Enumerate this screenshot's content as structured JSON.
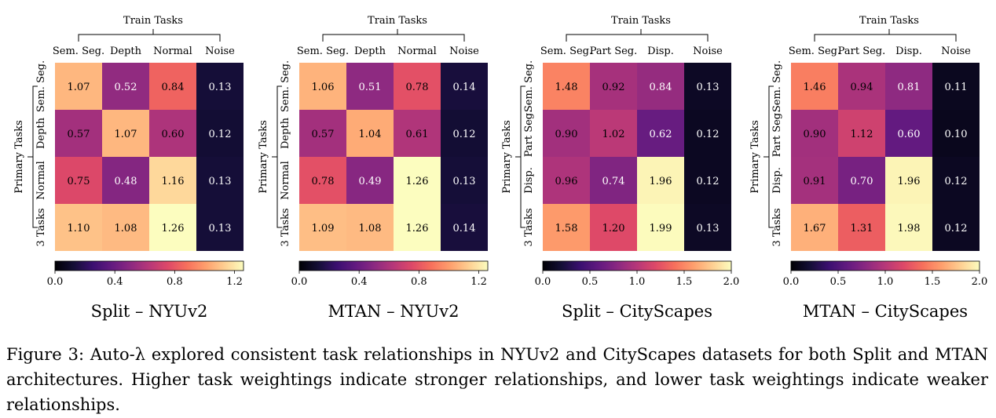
{
  "chart_data": [
    {
      "type": "heatmap",
      "title": "Split – NYUv2",
      "xgroup_label": "Train Tasks",
      "ygroup_label": "Primary Tasks",
      "x_categories": [
        "Sem. Seg.",
        "Depth",
        "Normal",
        "Noise"
      ],
      "y_categories": [
        "Sem. Seg.",
        "Depth",
        "Normal",
        "3 Tasks"
      ],
      "values": [
        [
          1.07,
          0.52,
          0.84,
          0.13
        ],
        [
          0.57,
          1.07,
          0.6,
          0.12
        ],
        [
          0.75,
          0.48,
          1.16,
          0.13
        ],
        [
          1.1,
          1.08,
          1.26,
          0.13
        ]
      ],
      "value_labels": [
        [
          "1.07",
          "0.52",
          "0.84",
          "0.13"
        ],
        [
          "0.57",
          "1.07",
          "0.60",
          "0.12"
        ],
        [
          "0.75",
          "0.48",
          "1.16",
          "0.13"
        ],
        [
          "1.10",
          "1.08",
          "1.26",
          "0.13"
        ]
      ],
      "colormap": "magma",
      "vlim": [
        0,
        1.26
      ],
      "colorbar_ticks": [
        0,
        0.4,
        0.8,
        1.2
      ],
      "colorbar_tick_labels": [
        "0.0",
        "0.4",
        "0.8",
        "1.2"
      ]
    },
    {
      "type": "heatmap",
      "title": "MTAN – NYUv2",
      "xgroup_label": "Train Tasks",
      "ygroup_label": "Primary Tasks",
      "x_categories": [
        "Sem. Seg.",
        "Depth",
        "Normal",
        "Noise"
      ],
      "y_categories": [
        "Sem. Seg.",
        "Depth",
        "Normal",
        "3 Tasks"
      ],
      "values": [
        [
          1.06,
          0.51,
          0.78,
          0.14
        ],
        [
          0.57,
          1.04,
          0.61,
          0.12
        ],
        [
          0.78,
          0.49,
          1.26,
          0.13
        ],
        [
          1.09,
          1.08,
          1.26,
          0.14
        ]
      ],
      "value_labels": [
        [
          "1.06",
          "0.51",
          "0.78",
          "0.14"
        ],
        [
          "0.57",
          "1.04",
          "0.61",
          "0.12"
        ],
        [
          "0.78",
          "0.49",
          "1.26",
          "0.13"
        ],
        [
          "1.09",
          "1.08",
          "1.26",
          "0.14"
        ]
      ],
      "colormap": "magma",
      "vlim": [
        0,
        1.26
      ],
      "colorbar_ticks": [
        0,
        0.4,
        0.8,
        1.2
      ],
      "colorbar_tick_labels": [
        "0.0",
        "0.4",
        "0.8",
        "1.2"
      ]
    },
    {
      "type": "heatmap",
      "title": "Split – CityScapes",
      "xgroup_label": "Train Tasks",
      "ygroup_label": "Primary Tasks",
      "x_categories": [
        "Sem. Seg.",
        "Part Seg.",
        "Disp.",
        "Noise"
      ],
      "y_categories": [
        "Sem. Seg.",
        "Part Seg.",
        "Disp.",
        "3 Tasks"
      ],
      "values": [
        [
          1.48,
          0.92,
          0.84,
          0.13
        ],
        [
          0.9,
          1.02,
          0.62,
          0.12
        ],
        [
          0.96,
          0.74,
          1.96,
          0.12
        ],
        [
          1.58,
          1.2,
          1.99,
          0.13
        ]
      ],
      "value_labels": [
        [
          "1.48",
          "0.92",
          "0.84",
          "0.13"
        ],
        [
          "0.90",
          "1.02",
          "0.62",
          "0.12"
        ],
        [
          "0.96",
          "0.74",
          "1.96",
          "0.12"
        ],
        [
          "1.58",
          "1.20",
          "1.99",
          "0.13"
        ]
      ],
      "colormap": "magma",
      "vlim": [
        0,
        2.0
      ],
      "colorbar_ticks": [
        0,
        0.5,
        1.0,
        1.5,
        2.0
      ],
      "colorbar_tick_labels": [
        "0.0",
        "0.5",
        "1.0",
        "1.5",
        "2.0"
      ]
    },
    {
      "type": "heatmap",
      "title": "MTAN – CityScapes",
      "xgroup_label": "Train Tasks",
      "ygroup_label": "Primary Tasks",
      "x_categories": [
        "Sem. Seg.",
        "Part Seg.",
        "Disp.",
        "Noise"
      ],
      "y_categories": [
        "Sem. Seg.",
        "Part Seg.",
        "Disp.",
        "3 Tasks"
      ],
      "values": [
        [
          1.46,
          0.94,
          0.81,
          0.11
        ],
        [
          0.9,
          1.12,
          0.6,
          0.1
        ],
        [
          0.91,
          0.7,
          1.96,
          0.12
        ],
        [
          1.67,
          1.31,
          1.98,
          0.12
        ]
      ],
      "value_labels": [
        [
          "1.46",
          "0.94",
          "0.81",
          "0.11"
        ],
        [
          "0.90",
          "1.12",
          "0.60",
          "0.10"
        ],
        [
          "0.91",
          "0.70",
          "1.96",
          "0.12"
        ],
        [
          "1.67",
          "1.31",
          "1.98",
          "0.12"
        ]
      ],
      "colormap": "magma",
      "vlim": [
        0,
        2.0
      ],
      "colorbar_ticks": [
        0,
        0.5,
        1.0,
        1.5,
        2.0
      ],
      "colorbar_tick_labels": [
        "0.0",
        "0.5",
        "1.0",
        "1.5",
        "2.0"
      ]
    }
  ],
  "caption": {
    "text": "Figure 3: Auto-λ explored consistent task relationships in NYUv2 and CityScapes datasets for both Split and MTAN architectures. Higher task weightings indicate stronger relationships, and lower task weightings indicate weaker relationships."
  }
}
